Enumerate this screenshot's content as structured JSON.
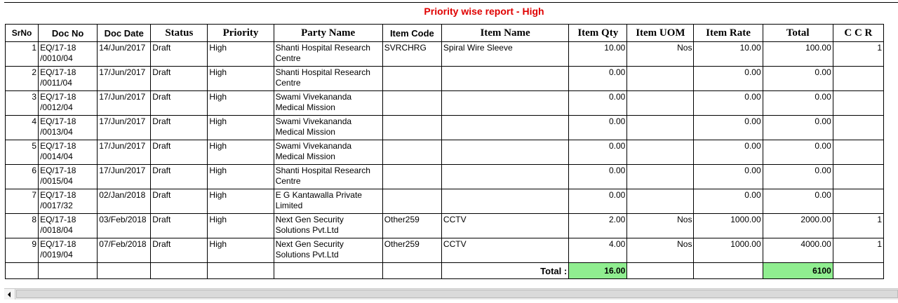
{
  "report": {
    "title": "Priority wise report - High"
  },
  "columns": [
    {
      "key": "srno",
      "label": "SrNo",
      "style": "sans b"
    },
    {
      "key": "doc_no",
      "label": "Doc No",
      "style": "sans"
    },
    {
      "key": "doc_date",
      "label": "Doc Date",
      "style": "sans"
    },
    {
      "key": "status",
      "label": "Status",
      "style": "serif"
    },
    {
      "key": "priority",
      "label": "Priority",
      "style": "serif"
    },
    {
      "key": "party_name",
      "label": "Party Name",
      "style": "serif"
    },
    {
      "key": "item_code",
      "label": "Item Code",
      "style": "sans"
    },
    {
      "key": "item_name",
      "label": "Item Name",
      "style": "serif"
    },
    {
      "key": "item_qty",
      "label": "Item Qty",
      "style": "serif"
    },
    {
      "key": "item_uom",
      "label": "Item UOM",
      "style": "serif"
    },
    {
      "key": "item_rate",
      "label": "Item Rate",
      "style": "serif"
    },
    {
      "key": "total",
      "label": "Total",
      "style": "serif"
    },
    {
      "key": "ccr",
      "label": "C C R",
      "style": "serif"
    }
  ],
  "rows": [
    {
      "srno": "1",
      "doc_no_1": "EQ/17-18",
      "doc_no_2": "/0010/04",
      "doc_date": "14/Jun/2017",
      "status": "Draft",
      "priority": "High",
      "party_1": "Shanti Hospital Research",
      "party_2": "Centre",
      "item_code": "SVRCHRG",
      "item_name": "Spiral Wire Sleeve",
      "item_qty": "10.00",
      "item_uom": "Nos",
      "item_rate": "10.00",
      "total": "100.00",
      "ccr": "1"
    },
    {
      "srno": "2",
      "doc_no_1": "EQ/17-18",
      "doc_no_2": "/0011/04",
      "doc_date": "17/Jun/2017",
      "status": "Draft",
      "priority": "High",
      "party_1": "Shanti Hospital Research",
      "party_2": "Centre",
      "item_code": "",
      "item_name": "",
      "item_qty": "0.00",
      "item_uom": "",
      "item_rate": "0.00",
      "total": "0.00",
      "ccr": ""
    },
    {
      "srno": "3",
      "doc_no_1": "EQ/17-18",
      "doc_no_2": "/0012/04",
      "doc_date": "17/Jun/2017",
      "status": "Draft",
      "priority": "High",
      "party_1": "Swami Vivekananda",
      "party_2": "Medical Mission",
      "item_code": "",
      "item_name": "",
      "item_qty": "0.00",
      "item_uom": "",
      "item_rate": "0.00",
      "total": "0.00",
      "ccr": ""
    },
    {
      "srno": "4",
      "doc_no_1": "EQ/17-18",
      "doc_no_2": "/0013/04",
      "doc_date": "17/Jun/2017",
      "status": "Draft",
      "priority": "High",
      "party_1": "Swami Vivekananda",
      "party_2": "Medical Mission",
      "item_code": "",
      "item_name": "",
      "item_qty": "0.00",
      "item_uom": "",
      "item_rate": "0.00",
      "total": "0.00",
      "ccr": ""
    },
    {
      "srno": "5",
      "doc_no_1": "EQ/17-18",
      "doc_no_2": "/0014/04",
      "doc_date": "17/Jun/2017",
      "status": "Draft",
      "priority": "High",
      "party_1": "Swami Vivekananda",
      "party_2": "Medical Mission",
      "item_code": "",
      "item_name": "",
      "item_qty": "0.00",
      "item_uom": "",
      "item_rate": "0.00",
      "total": "0.00",
      "ccr": ""
    },
    {
      "srno": "6",
      "doc_no_1": "EQ/17-18",
      "doc_no_2": "/0015/04",
      "doc_date": "17/Jun/2017",
      "status": "Draft",
      "priority": "High",
      "party_1": "Shanti Hospital Research",
      "party_2": "Centre",
      "item_code": "",
      "item_name": "",
      "item_qty": "0.00",
      "item_uom": "",
      "item_rate": "0.00",
      "total": "0.00",
      "ccr": ""
    },
    {
      "srno": "7",
      "doc_no_1": "EQ/17-18",
      "doc_no_2": "/0017/32",
      "doc_date": "02/Jan/2018",
      "status": "Draft",
      "priority": "High",
      "party_1": "E G Kantawalla Private",
      "party_2": "Limited",
      "item_code": "",
      "item_name": "",
      "item_qty": "0.00",
      "item_uom": "",
      "item_rate": "0.00",
      "total": "0.00",
      "ccr": ""
    },
    {
      "srno": "8",
      "doc_no_1": "EQ/17-18",
      "doc_no_2": "/0018/04",
      "doc_date": "03/Feb/2018",
      "status": "Draft",
      "priority": "High",
      "party_1": "Next Gen Security",
      "party_2": "Solutions Pvt.Ltd",
      "item_code": "Other259",
      "item_name": "CCTV",
      "item_qty": "2.00",
      "item_uom": "Nos",
      "item_rate": "1000.00",
      "total": "2000.00",
      "ccr": "1"
    },
    {
      "srno": "9",
      "doc_no_1": "EQ/17-18",
      "doc_no_2": "/0019/04",
      "doc_date": "07/Feb/2018",
      "status": "Draft",
      "priority": "High",
      "party_1": "Next Gen Security",
      "party_2": "Solutions Pvt.Ltd",
      "item_code": "Other259",
      "item_name": "CCTV",
      "item_qty": "4.00",
      "item_uom": "Nos",
      "item_rate": "1000.00",
      "total": "4000.00",
      "ccr": "1"
    }
  ],
  "totals": {
    "label": "Total :",
    "item_qty": "16.00",
    "total": "6100"
  },
  "colors": {
    "title": "#e00000",
    "highlight": "#90ee90"
  }
}
